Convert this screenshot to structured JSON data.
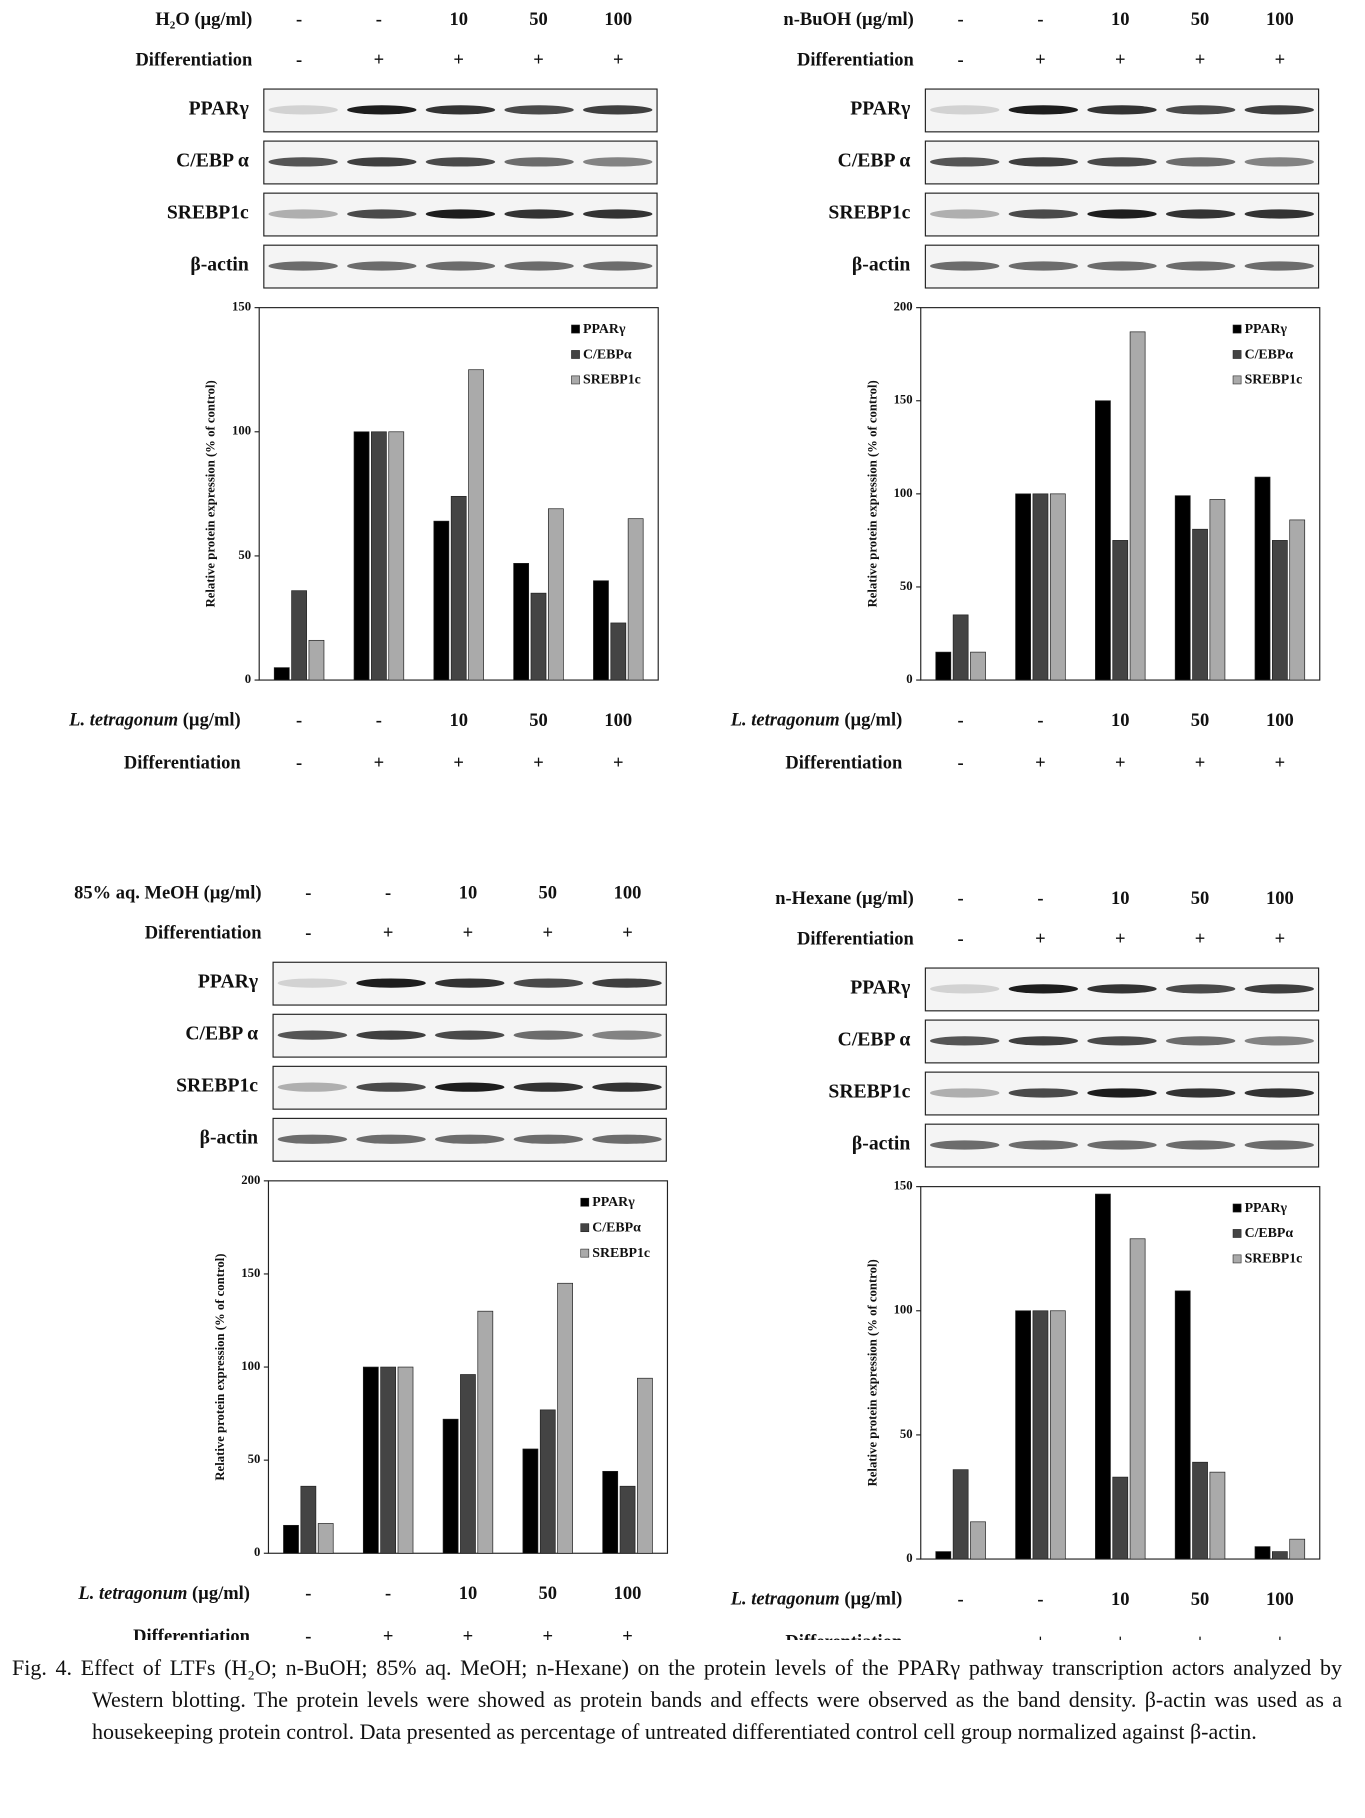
{
  "panels": [
    {
      "treatment_label": "H₂O (µg/ml)",
      "doses": [
        "-",
        "-",
        "10",
        "50",
        "100"
      ],
      "differentiation_label": "Differentiation",
      "differentiation": [
        "-",
        "+",
        "+",
        "+",
        "+"
      ],
      "blots": [
        "PPARγ",
        "C/EBP α",
        "SREBP1c",
        "β-actin"
      ]
    },
    {
      "treatment_label": "n-BuOH (µg/ml)",
      "doses": [
        "-",
        "-",
        "10",
        "50",
        "100"
      ],
      "differentiation_label": "Differentiation",
      "differentiation": [
        "-",
        "+",
        "+",
        "+",
        "+"
      ],
      "blots": [
        "PPARγ",
        "C/EBP α",
        "SREBP1c",
        "β-actin"
      ]
    },
    {
      "treatment_label": "85% aq. MeOH  (µg/ml)",
      "doses": [
        "-",
        "-",
        "10",
        "50",
        "100"
      ],
      "differentiation_label": "Differentiation",
      "differentiation": [
        "-",
        "+",
        "+",
        "+",
        "+"
      ],
      "blots": [
        "PPARγ",
        "C/EBP α",
        "SREBP1c",
        "β-actin"
      ]
    },
    {
      "treatment_label": "n-Hexane (µg/ml)",
      "doses": [
        "-",
        "-",
        "10",
        "50",
        "100"
      ],
      "differentiation_label": "Differentiation",
      "differentiation": [
        "-",
        "+",
        "+",
        "+",
        "+"
      ],
      "blots": [
        "PPARγ",
        "C/EBP α",
        "SREBP1c",
        "β-actin"
      ]
    }
  ],
  "chart_data": [
    {
      "type": "bar",
      "y_label": "Relative protein expression (% of control)",
      "x_label_species": "L.  tetragonum",
      "x_label_unit": "(µg/ml)",
      "categories": [
        "-",
        "-",
        "10",
        "50",
        "100"
      ],
      "differentiation_label": "Differentiation",
      "differentiation": [
        "-",
        "+",
        "+",
        "+",
        "+"
      ],
      "ylim": [
        0,
        150
      ],
      "yticks": [
        0,
        50,
        100,
        150
      ],
      "series": [
        {
          "name": "PPARγ",
          "color": "#000000",
          "values": [
            5,
            100,
            64,
            47,
            40
          ]
        },
        {
          "name": "C/EBPα",
          "color": "#444444",
          "values": [
            36,
            100,
            74,
            35,
            23
          ]
        },
        {
          "name": "SREBP1c",
          "color": "#aaaaaa",
          "values": [
            16,
            100,
            125,
            69,
            65
          ]
        }
      ]
    },
    {
      "type": "bar",
      "y_label": "Relative protein expression (% of control)",
      "x_label_species": "L.  tetragonum",
      "x_label_unit": "(µg/ml)",
      "categories": [
        "-",
        "-",
        "10",
        "50",
        "100"
      ],
      "differentiation_label": "Differentiation",
      "differentiation": [
        "-",
        "+",
        "+",
        "+",
        "+"
      ],
      "ylim": [
        0,
        200
      ],
      "yticks": [
        0,
        50,
        100,
        150,
        200
      ],
      "series": [
        {
          "name": "PPARγ",
          "color": "#000000",
          "values": [
            15,
            100,
            150,
            99,
            109
          ]
        },
        {
          "name": "C/EBPα",
          "color": "#444444",
          "values": [
            35,
            100,
            75,
            81,
            75
          ]
        },
        {
          "name": "SREBP1c",
          "color": "#aaaaaa",
          "values": [
            15,
            100,
            187,
            97,
            86
          ]
        }
      ]
    },
    {
      "type": "bar",
      "y_label": "Relative protein expression (% of control)",
      "x_label_species": "L.  tetragonum",
      "x_label_unit": "(µg/ml)",
      "categories": [
        "-",
        "-",
        "10",
        "50",
        "100"
      ],
      "differentiation_label": "Differentiation",
      "differentiation": [
        "-",
        "+",
        "+",
        "+",
        "+"
      ],
      "ylim": [
        0,
        200
      ],
      "yticks": [
        0,
        50,
        100,
        150,
        200
      ],
      "series": [
        {
          "name": "PPARγ",
          "color": "#000000",
          "values": [
            15,
            100,
            72,
            56,
            44
          ]
        },
        {
          "name": "C/EBPα",
          "color": "#444444",
          "values": [
            36,
            100,
            96,
            77,
            36
          ]
        },
        {
          "name": "SREBP1c",
          "color": "#aaaaaa",
          "values": [
            16,
            100,
            130,
            145,
            94
          ]
        }
      ]
    },
    {
      "type": "bar",
      "y_label": "Relative protein expression (% of control)",
      "x_label_species": "L.  tetragonum",
      "x_label_unit": "(µg/ml)",
      "categories": [
        "-",
        "-",
        "10",
        "50",
        "100"
      ],
      "differentiation_label": "Differentiation",
      "differentiation": [
        "-",
        "+",
        "+",
        "+",
        "+"
      ],
      "ylim": [
        0,
        150
      ],
      "yticks": [
        0,
        50,
        100,
        150
      ],
      "series": [
        {
          "name": "PPARγ",
          "color": "#000000",
          "values": [
            3,
            100,
            147,
            108,
            5
          ]
        },
        {
          "name": "C/EBPα",
          "color": "#444444",
          "values": [
            36,
            100,
            33,
            39,
            3
          ]
        },
        {
          "name": "SREBP1c",
          "color": "#aaaaaa",
          "values": [
            15,
            100,
            129,
            35,
            8
          ]
        }
      ]
    }
  ],
  "caption": "Fig. 4. Effect of LTFs (H₂O; n-BuOH; 85% aq. MeOH; n-Hexane) on the protein levels of the PPARγ pathway transcription actors analyzed by Western blotting. The protein levels were showed as protein bands and effects were observed as the band density. β-actin was used as a housekeeping protein control. Data presented as percentage of untreated differentiated control cell group normalized against β-actin."
}
